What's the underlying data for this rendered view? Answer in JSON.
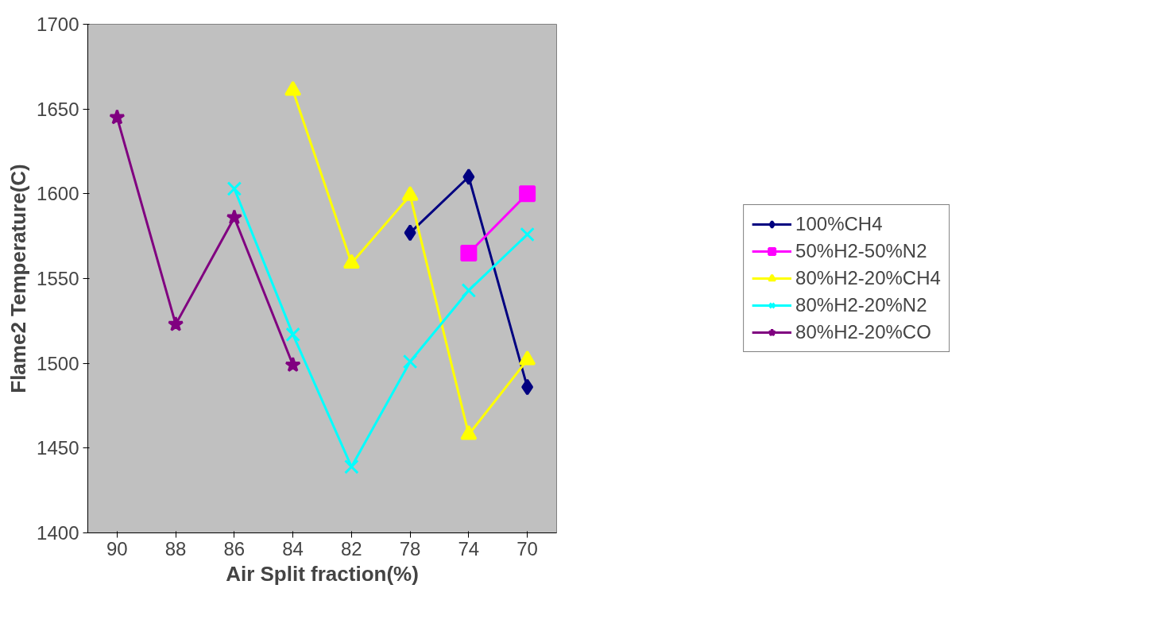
{
  "chart_data": {
    "type": "line",
    "xlabel": "Air Split fraction(%)",
    "ylabel": "Flame2 Temperature(C)",
    "categories": [
      "90",
      "88",
      "86",
      "84",
      "82",
      "78",
      "74",
      "70"
    ],
    "ylim": [
      1400,
      1700
    ],
    "yticks": [
      1400,
      1450,
      1500,
      1550,
      1600,
      1650,
      1700
    ],
    "grid": false,
    "legend": "right",
    "series": [
      {
        "name": "100%CH4",
        "color": "#000080",
        "marker": "diamond",
        "values": [
          null,
          null,
          null,
          null,
          null,
          1577,
          1610,
          1486
        ]
      },
      {
        "name": "50%H2-50%N2",
        "color": "#ff00ff",
        "marker": "square",
        "values": [
          null,
          null,
          null,
          null,
          null,
          null,
          1565,
          1600
        ]
      },
      {
        "name": "80%H2-20%CH4",
        "color": "#ffff00",
        "marker": "triangle",
        "values": [
          null,
          null,
          null,
          1661,
          1559,
          1599,
          1458,
          1502
        ]
      },
      {
        "name": "80%H2-20%N2",
        "color": "#00ffff",
        "marker": "cross",
        "values": [
          null,
          null,
          1603,
          1517,
          1439,
          1501,
          1543,
          1576
        ]
      },
      {
        "name": "80%H2-20%CO",
        "color": "#800080",
        "marker": "star",
        "values": [
          1645,
          1523,
          1586,
          1499,
          null,
          null,
          null,
          null
        ]
      }
    ]
  }
}
